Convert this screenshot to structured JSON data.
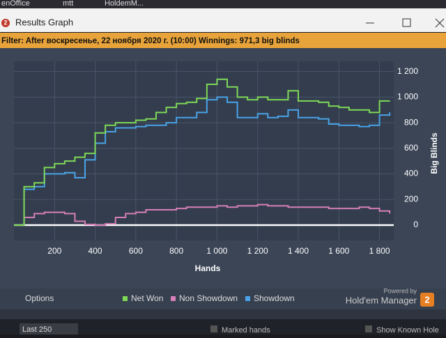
{
  "taskbar": [
    "enOffice",
    "mtt",
    "HoldemM..."
  ],
  "window": {
    "icon": "2",
    "title": "Results Graph",
    "filter": "Filter: After воскресенье, 22 ноября 2020 г. (10:00) Winnings: 971,3 big blinds"
  },
  "chart_data": {
    "type": "line",
    "x_label": "Hands",
    "y_label": "Big Blinds",
    "x": [
      0,
      50,
      100,
      150,
      200,
      250,
      300,
      350,
      400,
      450,
      500,
      550,
      600,
      650,
      700,
      750,
      800,
      850,
      900,
      950,
      1000,
      1050,
      1100,
      1150,
      1200,
      1250,
      1300,
      1350,
      1400,
      1450,
      1500,
      1550,
      1600,
      1650,
      1700,
      1750,
      1800,
      1850
    ],
    "series": [
      {
        "name": "Net Won",
        "color": "#7ed957",
        "values": [
          0,
          300,
          330,
          450,
          480,
          500,
          530,
          560,
          720,
          780,
          800,
          800,
          820,
          830,
          880,
          920,
          950,
          960,
          990,
          1100,
          1140,
          1080,
          1000,
          980,
          1000,
          980,
          980,
          1050,
          970,
          970,
          960,
          930,
          920,
          900,
          900,
          880,
          970,
          971.3
        ]
      },
      {
        "name": "Non Showdown",
        "color": "#d77fb8",
        "values": [
          0,
          60,
          90,
          100,
          100,
          90,
          30,
          5,
          0,
          10,
          60,
          90,
          100,
          120,
          120,
          120,
          130,
          140,
          140,
          140,
          150,
          140,
          150,
          150,
          160,
          150,
          150,
          140,
          140,
          140,
          140,
          130,
          130,
          130,
          140,
          130,
          110,
          90
        ]
      },
      {
        "name": "Showdown",
        "color": "#4aa3e8",
        "values": [
          0,
          280,
          300,
          400,
          400,
          410,
          370,
          510,
          640,
          730,
          760,
          760,
          770,
          780,
          780,
          800,
          840,
          840,
          880,
          980,
          1000,
          960,
          840,
          840,
          870,
          840,
          850,
          900,
          840,
          840,
          830,
          790,
          780,
          780,
          770,
          780,
          860,
          880
        ]
      }
    ],
    "xlim": [
      0,
      1870
    ],
    "ylim": [
      -120,
      1280
    ],
    "xticks": [
      200,
      400,
      600,
      800,
      {
        "value": 1000,
        "label": "1 000"
      },
      {
        "value": 1200,
        "label": "1 200"
      },
      {
        "value": 1400,
        "label": "1 400"
      },
      {
        "value": 1600,
        "label": "1 600"
      },
      {
        "value": 1800,
        "label": "1 800"
      }
    ],
    "yticks": [
      0,
      200,
      400,
      600,
      800,
      {
        "value": 1000,
        "label": "1 000"
      },
      {
        "value": 1200,
        "label": "1 200"
      }
    ],
    "grid": true,
    "legend": "bottom"
  },
  "footer": {
    "options": "Options",
    "powered_by": "Powered by",
    "brand": "Hold'em Manager",
    "brand_version": "2"
  },
  "toolbar": {
    "range": "Last 250",
    "marked": "Marked hands",
    "show": "Show Known Hole"
  }
}
